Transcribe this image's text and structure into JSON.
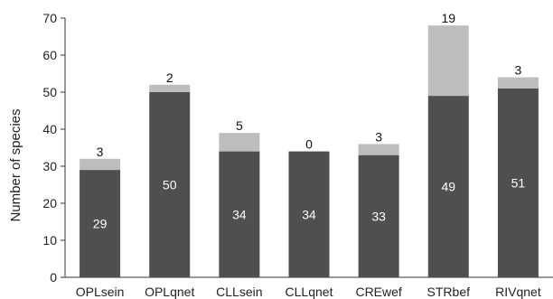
{
  "chart_data": {
    "type": "bar",
    "stacked": true,
    "categories": [
      "OPLsein",
      "OPLqnet",
      "CLLsein",
      "CLLqnet",
      "CREwef",
      "STRbef",
      "RIVqnet"
    ],
    "series": [
      {
        "values": [
          29,
          50,
          34,
          34,
          33,
          49,
          51
        ],
        "color": "#4f4f4f",
        "label_color": "#ffffff",
        "label_position": "inside"
      },
      {
        "values": [
          3,
          2,
          5,
          0,
          3,
          19,
          3
        ],
        "color": "#bdbdbd",
        "label_color": "#111111",
        "label_position": "top"
      }
    ],
    "title": "",
    "xlabel": "",
    "ylabel": "Number of species",
    "ylim": [
      0,
      70
    ],
    "yticks": [
      0,
      10,
      20,
      30,
      40,
      50,
      60,
      70
    ],
    "grid": false,
    "legend": "none"
  }
}
